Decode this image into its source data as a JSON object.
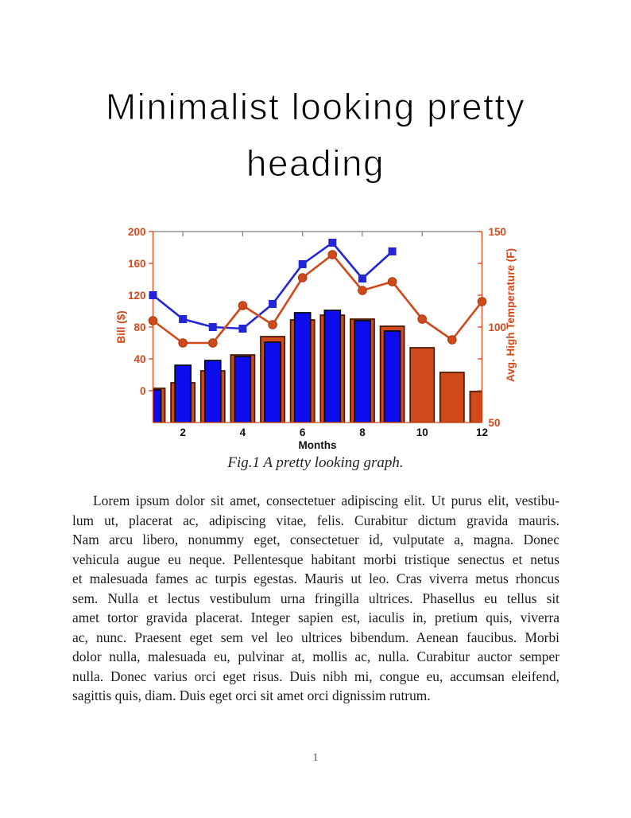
{
  "page": {
    "heading_line1": "Minimalist looking pretty",
    "heading_line2": "heading",
    "caption": "Fig.1 A pretty looking graph.",
    "page_number": "1",
    "paragraph_lines": [
      "Lorem ipsum dolor sit amet, consectetuer adipiscing elit.  Ut purus elit, vestibu-",
      "lum ut, placerat ac, adipiscing vitae, felis.  Curabitur dictum gravida mauris.",
      "Nam arcu libero, nonummy eget, consectetuer id, vulputate a, magna.  Donec",
      "vehicula augue eu neque. Pellentesque habitant morbi tristique senectus et netus",
      "et malesuada fames ac turpis egestas. Mauris ut leo. Cras viverra metus rhoncus",
      "sem.  Nulla et lectus vestibulum urna fringilla ultrices.  Phasellus eu tellus sit",
      "amet tortor gravida placerat. Integer sapien est, iaculis in, pretium quis, viverra",
      "ac, nunc.  Praesent eget sem vel leo ultrices bibendum.  Aenean faucibus.  Morbi",
      "dolor nulla, malesuada eu, pulvinar at, mollis ac, nulla.  Curabitur auctor semper",
      "nulla.  Donec varius orci eget risus.  Duis nibh mi, congue eu, accumsan eleifend,",
      "sagittis quis, diam.  Duis eget orci sit amet orci dignissim rutrum."
    ]
  },
  "chart_data": {
    "type": "bar",
    "subtype": "grouped bars + line overlays, dual y-axis",
    "title": "",
    "xlabel": "Months",
    "x_ticks": [
      2,
      4,
      6,
      8,
      10,
      12
    ],
    "x_range": [
      1,
      12
    ],
    "left_axis": {
      "label": "Bill ($)",
      "ticks": [
        0,
        40,
        80,
        120,
        160,
        200
      ],
      "range": [
        -40,
        200
      ],
      "color": "#d0491b"
    },
    "right_axis": {
      "label": "Avg. High Temperature (F)",
      "ticks": [
        50,
        100,
        150
      ],
      "range": [
        50,
        150
      ],
      "color": "#d0491b"
    },
    "bar_baseline": "plot bottom (-40 in left-axis units)",
    "top_spine_color": "#7d7d7d",
    "legend": "none",
    "grid": false,
    "series": [
      {
        "name": "orange-bars",
        "type": "bar",
        "color": "#d0491b",
        "edge": "#471800",
        "width_frac": 0.8,
        "x": [
          1,
          2,
          3,
          4,
          5,
          6,
          7,
          8,
          9,
          10,
          11,
          12
        ],
        "values": [
          3,
          10,
          25,
          45,
          68,
          89,
          95,
          90,
          81,
          54,
          23,
          -1
        ]
      },
      {
        "name": "blue-bars",
        "type": "bar",
        "color": "#0d0df0",
        "edge": "#000a10",
        "width_frac": 0.53,
        "x": [
          1,
          2,
          3,
          4,
          5,
          6,
          7,
          8,
          9
        ],
        "values": [
          1,
          32,
          38,
          43,
          61,
          98,
          101,
          88,
          75
        ]
      },
      {
        "name": "blue-line",
        "type": "line",
        "marker": "square",
        "color": "#2326d8",
        "marker_edge": "#2326d8",
        "x": [
          1,
          2,
          3,
          4,
          5,
          6,
          7,
          8,
          9
        ],
        "values": [
          120,
          90,
          80,
          78,
          109,
          159,
          186,
          141,
          175
        ]
      },
      {
        "name": "orange-line",
        "type": "line",
        "marker": "circle",
        "color": "#d0491b",
        "marker_edge": "#a63a12",
        "x": [
          1,
          2,
          3,
          4,
          5,
          6,
          7,
          8,
          9,
          10,
          11,
          12
        ],
        "values": [
          88,
          60,
          60,
          107,
          83,
          142,
          171,
          126,
          137,
          90,
          64,
          112
        ]
      }
    ]
  }
}
